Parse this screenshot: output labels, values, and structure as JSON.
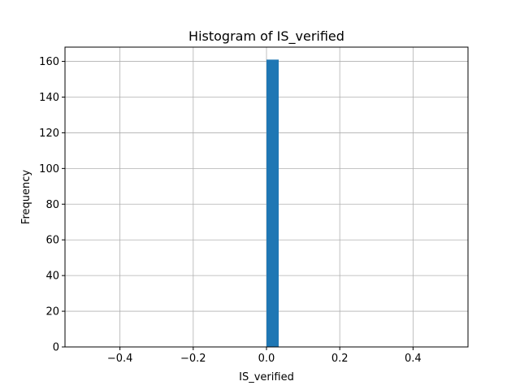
{
  "chart_data": {
    "type": "bar",
    "title": "Histogram of IS_verified",
    "xlabel": "IS_verified",
    "ylabel": "Frequency",
    "xlim": [
      -0.55,
      0.55
    ],
    "ylim": [
      0,
      168
    ],
    "x_ticks": [
      -0.4,
      -0.2,
      0.0,
      0.2,
      0.4
    ],
    "x_tick_labels": [
      "−0.4",
      "−0.2",
      "0.0",
      "0.2",
      "0.4"
    ],
    "y_ticks": [
      0,
      20,
      40,
      60,
      80,
      100,
      120,
      140,
      160
    ],
    "y_tick_labels": [
      "0",
      "20",
      "40",
      "60",
      "80",
      "100",
      "120",
      "140",
      "160"
    ],
    "bins": [
      {
        "x0": 0.0,
        "x1": 0.0333,
        "count": 161
      }
    ],
    "grid": true,
    "bar_color": "#1f77b4",
    "grid_color": "#b0b0b0"
  }
}
